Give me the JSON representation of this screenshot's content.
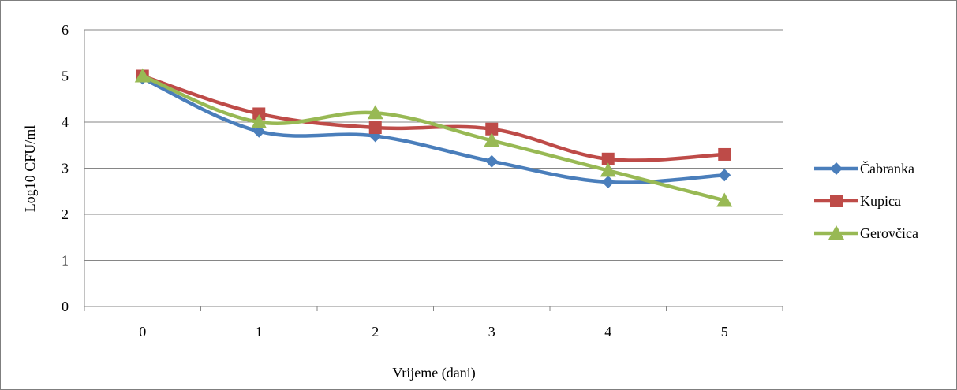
{
  "chart_data": {
    "type": "line",
    "title": "",
    "xlabel": "Vrijeme (dani)",
    "ylabel": "Log10 CFU/ml",
    "categories": [
      "0",
      "1",
      "2",
      "3",
      "4",
      "5"
    ],
    "ylim": [
      0,
      6
    ],
    "yticks": [
      "0",
      "1",
      "2",
      "3",
      "4",
      "5",
      "6"
    ],
    "grid": true,
    "legend_position": "right",
    "smooth": true,
    "series": [
      {
        "name": "Čabranka",
        "values": [
          4.95,
          3.8,
          3.7,
          3.15,
          2.7,
          2.85
        ],
        "color": "#4a7ebb",
        "marker": "diamond"
      },
      {
        "name": "Kupica",
        "values": [
          5.0,
          4.18,
          3.88,
          3.85,
          3.2,
          3.3
        ],
        "color": "#be4b48",
        "marker": "square"
      },
      {
        "name": "Gerovčica",
        "values": [
          5.0,
          4.0,
          4.2,
          3.6,
          2.95,
          2.3
        ],
        "color": "#98b954",
        "marker": "triangle"
      }
    ]
  }
}
